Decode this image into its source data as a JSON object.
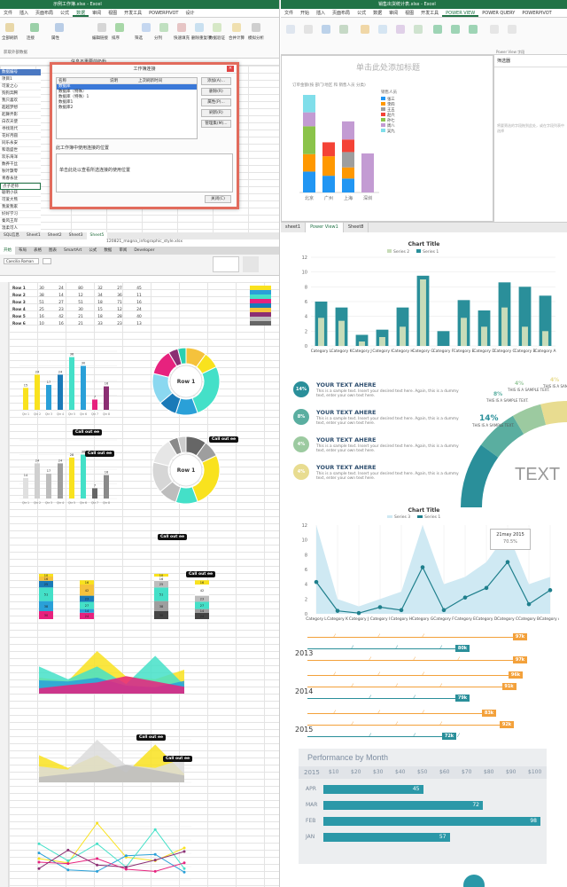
{
  "q1": {
    "title": "示例工作簿.xlsx - Excel",
    "tabs": [
      "文件",
      "插入",
      "页面布局",
      "公式",
      "数据",
      "审阅",
      "视图",
      "开发工具",
      "POWERPIVOT",
      "设计"
    ],
    "active_tab": "数据",
    "ribbon_labels": [
      "获取外部数据",
      "全部刷新",
      "连接",
      "属性",
      "编辑链接",
      "排序",
      "筛选",
      "分列",
      "快速填充",
      "删除重复项",
      "数据验证",
      "合并计算",
      "模拟分析",
      "关系",
      "创建组"
    ],
    "formula_value": "信息不重要前奶粉",
    "row_names": [
      "数据编号",
      "项目1",
      "可爱之心",
      "狗狗奔腾",
      "我只喜欢",
      "超越梦想",
      "起舞弄影",
      "白衣天使",
      "寻找现代",
      "花好月圆",
      "同乐永安",
      "和谐盛世",
      "欢乐海洋",
      "数养千丝",
      "秋叶飘零",
      "青春永驻",
      "点子老师",
      "聪明小孩",
      "可爱大熊",
      "我爱我家",
      "好好学习",
      "秦风王岸",
      "温柔可人",
      "我爱发财",
      "点子老师",
      "都过汪喜"
    ],
    "dialog": {
      "title": "工作簿连接",
      "col_name": "名称",
      "col_desc": "说明",
      "col_refresh": "上次刷新时间",
      "items": [
        "数据库",
        "数据库（特殊）",
        "数据库（特殊）1",
        "数据库1",
        "数据库2"
      ],
      "buttons": [
        "添加(A)...",
        "删除(R)",
        "属性(P)...",
        "刷新(R)",
        "管理集(M)..."
      ],
      "section": "此工作簿中使用连接的位置",
      "hint": "单击此处以查看所选连接的使用位置",
      "close": "关闭(C)"
    }
  },
  "q2": {
    "title": "销售出货统计表.xlsx - Excel",
    "tabs": [
      "文件",
      "开始",
      "插入",
      "页面布局",
      "公式",
      "数据",
      "审阅",
      "视图",
      "开发工具",
      "POWER VIEW",
      "POWER QUERY",
      "POWERPIVOT"
    ],
    "active_tab": "POWER VIEW",
    "placeholder_title": "单击此处添加标题",
    "filter_title": "筛选器",
    "filter_hint": "将要筛选的字段拖到此处，或在字段列表中选择",
    "chart_caption": "订单金额(按 部门/地区 和 销售人员 分类)",
    "legend_title": "销售人员",
    "sheets": [
      "sheet1",
      "Power View1",
      "Sheet8"
    ],
    "active_sheet": "Power View1",
    "side_panel": "Power View 字段"
  },
  "q2_chart": {
    "type": "bar",
    "categories": [
      "北京",
      "广州",
      "上海",
      "深圳"
    ],
    "series": [
      {
        "name": "张三",
        "color": "#2196f3",
        "values": [
          30,
          24,
          20,
          0
        ]
      },
      {
        "name": "李四",
        "color": "#ff9800",
        "values": [
          25,
          28,
          16,
          0
        ]
      },
      {
        "name": "王五",
        "color": "#9e9e9e",
        "values": [
          0,
          0,
          22,
          0
        ]
      },
      {
        "name": "赵六",
        "color": "#f44336",
        "values": [
          0,
          20,
          18,
          0
        ]
      },
      {
        "name": "孙七",
        "color": "#8bc34a",
        "values": [
          40,
          0,
          0,
          0
        ]
      },
      {
        "name": "周八",
        "color": "#c39bd3",
        "values": [
          20,
          0,
          26,
          56
        ]
      },
      {
        "name": "吴九",
        "color": "#80deea",
        "values": [
          25,
          0,
          0,
          0
        ]
      }
    ]
  },
  "q3": {
    "title": "120821_magna_infographic_style.xlsx",
    "tabs": [
      "开始",
      "布局",
      "表格",
      "图表",
      "SmartArt",
      "公式",
      "数据",
      "审阅",
      "Developer"
    ],
    "active_tab": "开始",
    "font_name": "Caecilia Roman",
    "sheets": [
      "SQL信息",
      "Sheet1",
      "Sheet2",
      "Sheet3",
      "Sheet5"
    ],
    "active_sheet": "Sheet5",
    "rows_labels": [
      "Row 1",
      "Row 2",
      "Row 3",
      "Row 4",
      "Row 5",
      "Row 6"
    ],
    "table_values": [
      [
        30,
        24,
        80,
        32,
        27,
        45
      ],
      [
        38,
        14,
        12,
        34,
        36,
        11
      ],
      [
        51,
        27,
        51,
        18,
        71,
        16
      ],
      [
        25,
        23,
        30,
        15,
        12,
        24
      ],
      [
        16,
        42,
        21,
        18,
        28,
        40
      ],
      [
        10,
        16,
        21,
        33,
        23,
        13
      ]
    ],
    "donut_label": "Row 1",
    "callout": "Call out ee",
    "palette": [
      "#f9e21e",
      "#2aa0d8",
      "#44e0c8",
      "#e7227e",
      "#1a7ab8",
      "#f5c23c",
      "#8b2f73",
      "#bdbdbd",
      "#666666"
    ]
  },
  "q3_bar": {
    "type": "bar",
    "categories": [
      "Qtr 1",
      "Qtr 2",
      "Qtr 3",
      "Qtr 4",
      "Qtr 5",
      "Qtr 6",
      "Qtr 7",
      "Qtr 8"
    ],
    "values": [
      15,
      24,
      17,
      24,
      36,
      30,
      7,
      16
    ],
    "colors": [
      "#f9e21e",
      "#f9e21e",
      "#2aa0d8",
      "#1a7ab8",
      "#44e0c8",
      "#2aa0d8",
      "#e7227e",
      "#8b2f73"
    ]
  },
  "q3_bar_gray": {
    "type": "bar",
    "categories": [
      "Qtr 1",
      "Qtr 2",
      "Qtr 3",
      "Qtr 4",
      "Qtr 5",
      "Qtr 6",
      "Qtr 7",
      "Qtr 8"
    ],
    "values": [
      14,
      24,
      17,
      24,
      28,
      30,
      7,
      16
    ],
    "colors": [
      "#e0e0e0",
      "#d0d0d0",
      "#bdbdbd",
      "#9e9e9e",
      "#f9e21e",
      "#44e0c8",
      "#666666",
      "#8a8a8a"
    ]
  },
  "q4": {
    "chart1": {
      "title": "Chart Title",
      "legend": [
        "Series 2",
        "Series 1"
      ],
      "categories": [
        "Category L",
        "Category K",
        "Category J",
        "Category I",
        "Category H",
        "Category G",
        "Category F",
        "Category E",
        "Category D",
        "Category C",
        "Category B",
        "Category A"
      ],
      "series1": [
        6,
        5.2,
        1.5,
        2.2,
        5.2,
        9.5,
        2,
        6.2,
        4.8,
        8.6,
        8,
        6.8
      ],
      "series2": [
        3.8,
        3.4,
        0.6,
        1.2,
        2.6,
        9,
        0,
        3.8,
        2.6,
        5.2,
        2.6,
        2
      ],
      "ylim": [
        0,
        12
      ],
      "yticks": [
        0,
        2,
        4,
        6,
        8,
        10,
        12
      ]
    },
    "timeline": [
      {
        "pct": "14%",
        "color": "#2a8f9a",
        "head": "YOUR TEXT AHERE",
        "body": "This is a sample text. Insert your desired text here. Again, this is a dummy text, enter your own text here."
      },
      {
        "pct": "8%",
        "color": "#5aaea0",
        "head": "YOUR TEXT AHERE",
        "body": "This is a sample text. Insert your desired text here. Again, this is a dummy text, enter your own text here."
      },
      {
        "pct": "4%",
        "color": "#9ccaa0",
        "head": "YOUR TEXT AHERE",
        "body": "This is a sample text. Insert your desired text here. Again, this is a dummy text, enter your own text here."
      },
      {
        "pct": "4%",
        "color": "#e8dc90",
        "head": "YOUR TEXT AHERE",
        "body": "This is a sample text. Insert your desired text here. Again, this is a dummy text, enter your own text here."
      }
    ],
    "arc_labels": [
      {
        "pct": "14%",
        "text": "THIS IS A SAMPLE TEXT."
      },
      {
        "pct": "8%",
        "text": "THIS IS A SAMPLE TEXT."
      },
      {
        "pct": "4%",
        "text": "THIS IS A SAMPLE TEXT."
      },
      {
        "pct": "4%",
        "text": "THIS IS A SAMPLE TEXT."
      }
    ],
    "arc_text": "TEXT",
    "chart2": {
      "title": "Chart Title",
      "legend": [
        "Series 3",
        "Series 1"
      ],
      "series1": [
        4.3,
        0.4,
        0.1,
        0.9,
        0.5,
        6.3,
        0.5,
        2.2,
        3.5,
        7,
        1.3,
        3.2
      ],
      "series3": [
        12,
        2,
        1,
        2,
        3,
        12,
        4,
        5,
        7,
        11,
        4,
        5
      ],
      "ylim": [
        0,
        12
      ],
      "yticks": [
        0,
        2,
        4,
        6,
        8,
        10,
        12
      ],
      "tooltip_date": "21may 2015",
      "tooltip_value": "70.5%"
    },
    "years": [
      "2013",
      "2014",
      "2015"
    ],
    "progress_rows": [
      {
        "value": "97k",
        "color": "#f3a13b",
        "frac": 0.92
      },
      {
        "value": "80k",
        "color": "#2a8f9a",
        "frac": 0.66
      },
      {
        "value": "97k",
        "color": "#f3a13b",
        "frac": 0.92
      },
      {
        "value": "96k",
        "color": "#f3a13b",
        "frac": 0.9
      },
      {
        "value": "91k",
        "color": "#f3a13b",
        "frac": 0.87
      },
      {
        "value": "79k",
        "color": "#2a8f9a",
        "frac": 0.66
      },
      {
        "value": "83k",
        "color": "#f3a13b",
        "frac": 0.78
      },
      {
        "value": "92k",
        "color": "#f3a13b",
        "frac": 0.86
      },
      {
        "value": "72k",
        "color": "#2a8f9a",
        "frac": 0.6
      }
    ],
    "perf": {
      "title": "Performance by Month",
      "year": "2015",
      "axis": [
        "$10",
        "$20",
        "$30",
        "$40",
        "$50",
        "$60",
        "$70",
        "$80",
        "$90",
        "$100"
      ],
      "rows": [
        {
          "label": "APR",
          "value": 45
        },
        {
          "label": "MAR",
          "value": 72
        },
        {
          "label": "FEB",
          "value": 98
        },
        {
          "label": "JAN",
          "value": 57
        }
      ]
    }
  }
}
